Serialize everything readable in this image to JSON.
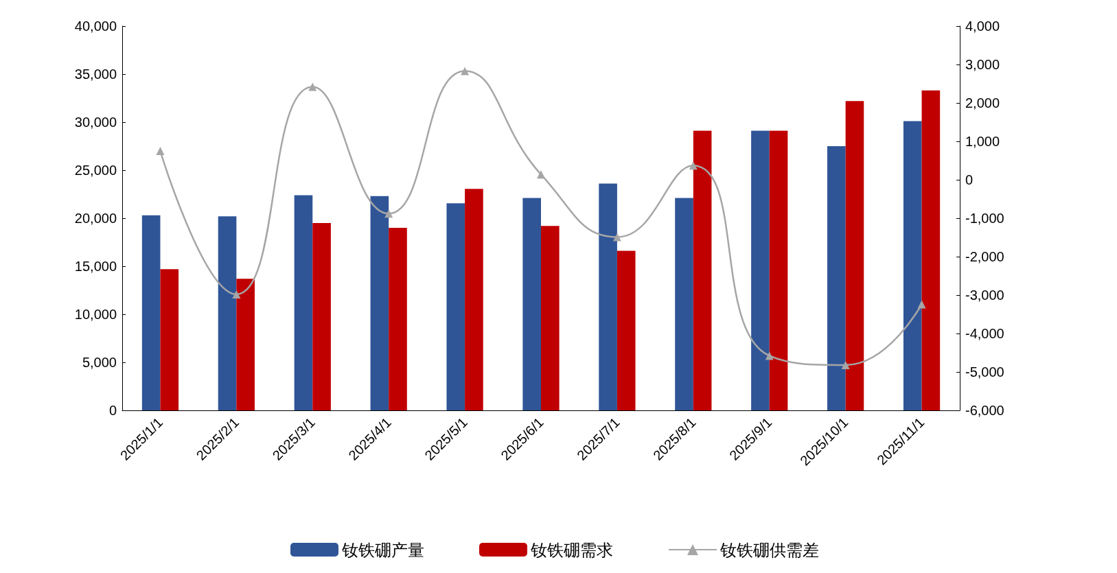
{
  "chart_data": {
    "type": "bar",
    "categories": [
      "2025/1/1",
      "2025/2/1",
      "2025/3/1",
      "2025/4/1",
      "2025/5/1",
      "2025/6/1",
      "2025/7/1",
      "2025/8/1",
      "2025/9/1",
      "2025/10/1",
      "2025/11/1"
    ],
    "series": [
      {
        "name": "钕铁硼产量",
        "color": "#2f5597",
        "values": [
          20300,
          20200,
          22400,
          22300,
          21550,
          22100,
          23600,
          22100,
          29100,
          27500,
          30100
        ]
      },
      {
        "name": "钕铁硼需求",
        "color": "#c00000",
        "values": [
          14700,
          13700,
          19500,
          19000,
          23050,
          19200,
          16600,
          29100,
          29100,
          32200,
          33300
        ]
      },
      {
        "name": "钕铁硼供需差",
        "type": "line",
        "axis": "y2",
        "color": "#a6a6a6",
        "marker": "triangle",
        "values": [
          750,
          -2980,
          2420,
          -880,
          2830,
          140,
          -1490,
          370,
          -4580,
          -4820,
          -3240
        ]
      }
    ],
    "ylim": [
      0,
      40000
    ],
    "yticks": [
      0,
      {
        "value": 5000,
        "label": "5,000"
      },
      {
        "value": 10000,
        "label": "10,000"
      },
      {
        "value": 15000,
        "label": "15,000"
      },
      {
        "value": 20000,
        "label": "20,000"
      },
      {
        "value": 25000,
        "label": "25,000"
      },
      {
        "value": 30000,
        "label": "30,000"
      },
      {
        "value": 35000,
        "label": "35,000"
      },
      {
        "value": 40000,
        "label": "40,000"
      }
    ],
    "y2lim": [
      -6000,
      4000
    ],
    "y2ticks": [
      {
        "value": -6000,
        "label": "-6,000"
      },
      {
        "value": -5000,
        "label": "-5,000"
      },
      {
        "value": -4000,
        "label": "-4,000"
      },
      {
        "value": -3000,
        "label": "-3,000"
      },
      {
        "value": -2000,
        "label": "-2,000"
      },
      {
        "value": -1000,
        "label": "-1,000"
      },
      0,
      {
        "value": 1000,
        "label": "1,000"
      },
      {
        "value": 2000,
        "label": "2,000"
      },
      {
        "value": 3000,
        "label": "3,000"
      },
      {
        "value": 4000,
        "label": "4,000"
      }
    ],
    "grid": false,
    "legend": "bottom"
  }
}
